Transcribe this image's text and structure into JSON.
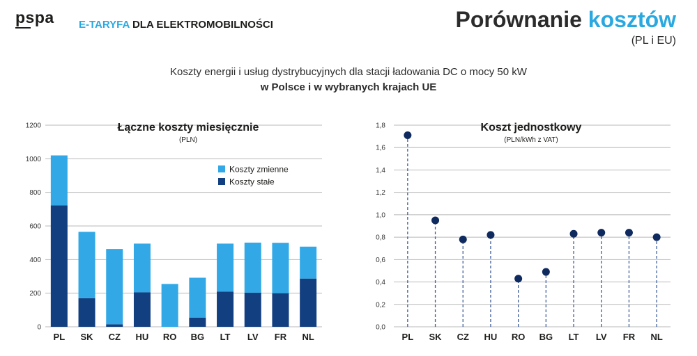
{
  "header": {
    "logo": "pspa",
    "subtitle_accent": "E-TARYFA",
    "subtitle_rest": " DLA ELEKTROMOBILNOŚCI",
    "title_dark": "Porównanie ",
    "title_accent": "kosztów",
    "title_sub": "(PL i EU)"
  },
  "description": {
    "line1": "Koszty energii i usług dystrybucyjnych dla stacji ładowania DC o mocy 50 kW",
    "line2": "w Polsce i w wybranych krajach UE"
  },
  "colors": {
    "accent": "#2aa8e0",
    "light_bar": "#32a9e6",
    "dark_bar": "#123f80",
    "grid": "#b8b8b8",
    "dot": "#0f2a5e",
    "stem": "#3f5f9a"
  },
  "chart_data": [
    {
      "type": "bar",
      "stacked": true,
      "title": "Łączne koszty miesięcznie",
      "subtitle": "(PLN)",
      "categories": [
        "PL",
        "SK",
        "CZ",
        "HU",
        "RO",
        "BG",
        "LT",
        "LV",
        "FR",
        "NL"
      ],
      "series": [
        {
          "name": "Koszty stałe",
          "color": "#123f80",
          "values": [
            722,
            170,
            15,
            205,
            0,
            55,
            210,
            203,
            200,
            287
          ]
        },
        {
          "name": "Koszty zmienne",
          "color": "#32a9e6",
          "values": [
            298,
            395,
            448,
            290,
            255,
            237,
            285,
            298,
            300,
            190
          ]
        }
      ],
      "legend": [
        "Koszty zmienne",
        "Koszty stałe"
      ],
      "legend_position": "top-right",
      "yticks": [
        "0",
        "200",
        "400",
        "600",
        "800",
        "1000",
        "1200"
      ],
      "ylim": [
        0,
        1200
      ],
      "grid": true
    },
    {
      "type": "scatter",
      "style": "lollipop",
      "title": "Koszt jednostkowy",
      "subtitle": "(PLN/kWh z VAT)",
      "categories": [
        "PL",
        "SK",
        "CZ",
        "HU",
        "RO",
        "BG",
        "LT",
        "LV",
        "FR",
        "NL"
      ],
      "values": [
        1.71,
        0.95,
        0.78,
        0.82,
        0.43,
        0.49,
        0.83,
        0.84,
        0.84,
        0.8
      ],
      "yticks": [
        "0,0",
        "0,2",
        "0,4",
        "0,6",
        "0,8",
        "1,0",
        "1,2",
        "1,4",
        "1,6",
        "1,8"
      ],
      "ylim": [
        0,
        1.8
      ],
      "grid": true
    }
  ]
}
